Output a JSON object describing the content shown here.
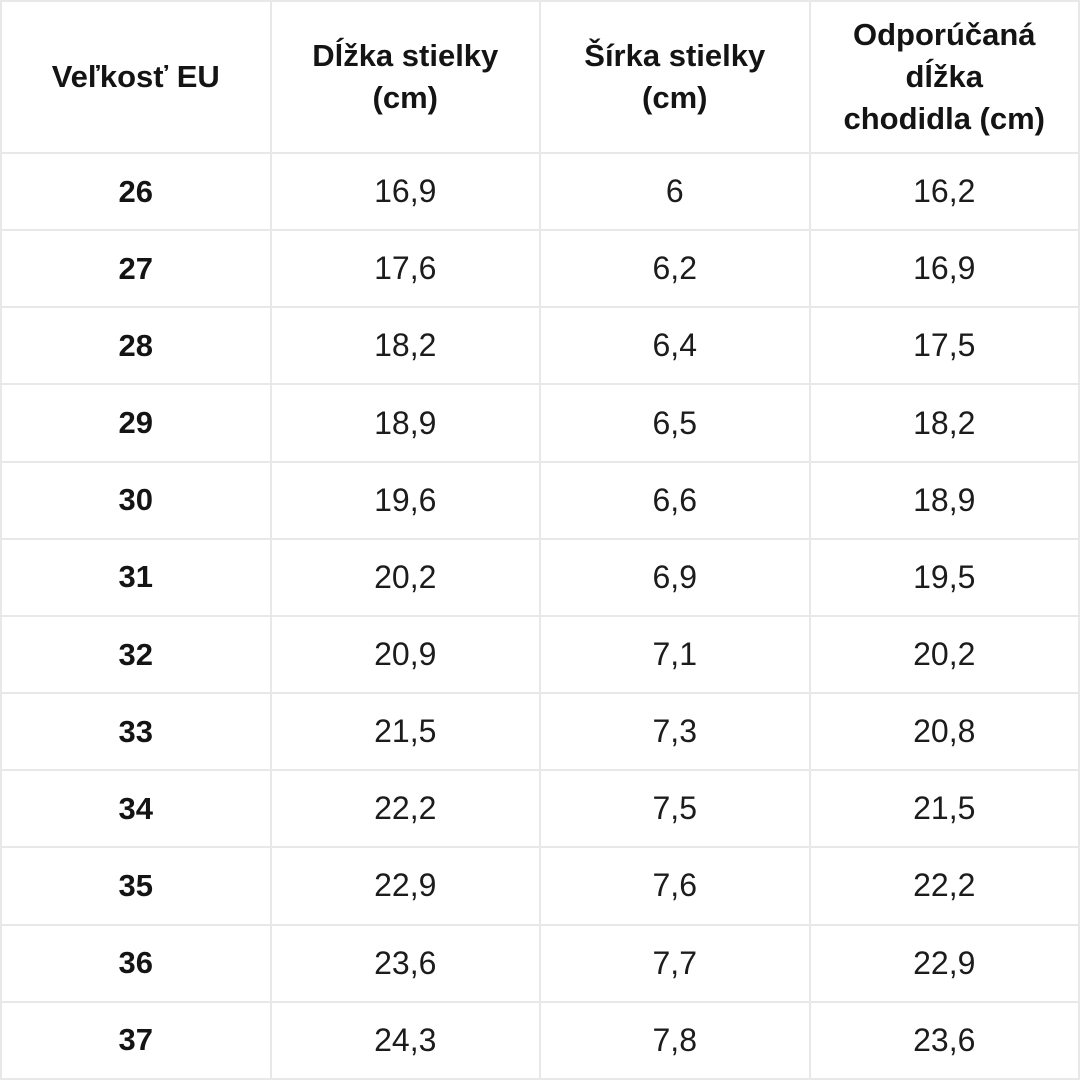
{
  "chart_data": {
    "type": "table",
    "columns": [
      "Veľkosť EU",
      "Dĺžka stielky\n(cm)",
      "Šírka stielky\n(cm)",
      "Odporúčaná\ndĺžka\nchodidla (cm)"
    ],
    "rows": [
      [
        "26",
        "16,9",
        "6",
        "16,2"
      ],
      [
        "27",
        "17,6",
        "6,2",
        "16,9"
      ],
      [
        "28",
        "18,2",
        "6,4",
        "17,5"
      ],
      [
        "29",
        "18,9",
        "6,5",
        "18,2"
      ],
      [
        "30",
        "19,6",
        "6,6",
        "18,9"
      ],
      [
        "31",
        "20,2",
        "6,9",
        "19,5"
      ],
      [
        "32",
        "20,9",
        "7,1",
        "20,2"
      ],
      [
        "33",
        "21,5",
        "7,3",
        "20,8"
      ],
      [
        "34",
        "22,2",
        "7,5",
        "21,5"
      ],
      [
        "35",
        "22,9",
        "7,6",
        "22,2"
      ],
      [
        "36",
        "23,6",
        "7,7",
        "22,9"
      ],
      [
        "37",
        "24,3",
        "7,8",
        "23,6"
      ]
    ],
    "layout": {
      "grid": true,
      "grid_line_color": "#e8e8e8",
      "background": "#ffffff",
      "text_color": "#171717",
      "header_rows": 1
    }
  }
}
